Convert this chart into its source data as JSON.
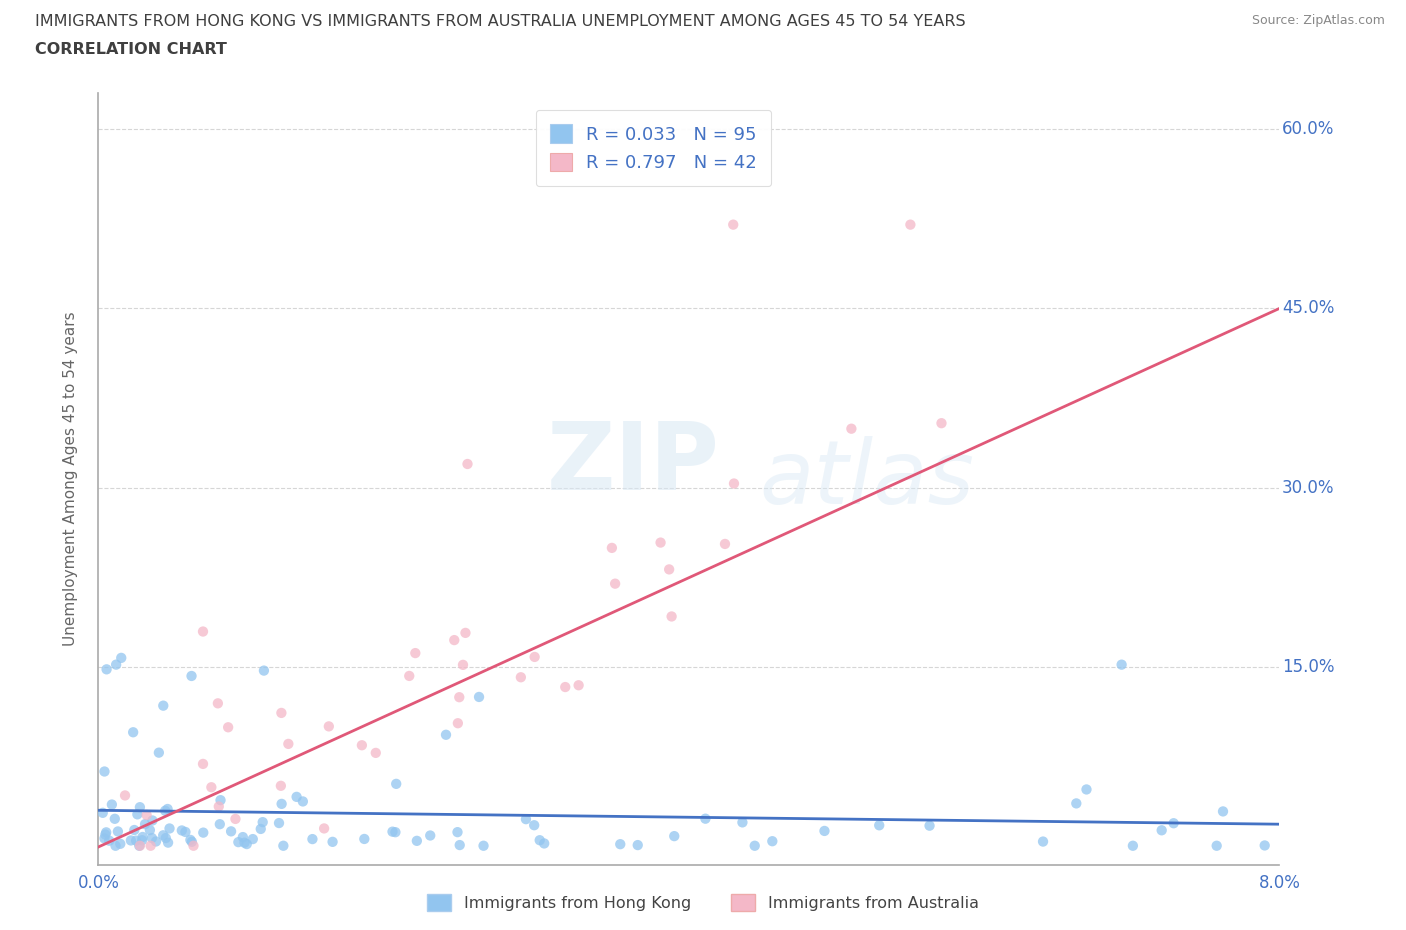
{
  "title_line1": "IMMIGRANTS FROM HONG KONG VS IMMIGRANTS FROM AUSTRALIA UNEMPLOYMENT AMONG AGES 45 TO 54 YEARS",
  "title_line2": "CORRELATION CHART",
  "source": "Source: ZipAtlas.com",
  "ylabel": "Unemployment Among Ages 45 to 54 years",
  "yticks": [
    0.0,
    0.15,
    0.3,
    0.45,
    0.6
  ],
  "xmin": 0.0,
  "xmax": 0.08,
  "ymin": -0.015,
  "ymax": 0.63,
  "hk_R": 0.033,
  "hk_N": 95,
  "aus_R": 0.797,
  "aus_N": 42,
  "hk_color": "#92c5ef",
  "hk_line_color": "#4472c4",
  "aus_color": "#f4b8c8",
  "aus_line_color": "#e05878",
  "legend_label_hk": "Immigrants from Hong Kong",
  "legend_label_aus": "Immigrants from Australia",
  "watermark_zip": "ZIP",
  "watermark_atlas": "atlas",
  "title_color": "#3f3f3f",
  "label_color": "#4472c4",
  "grid_color": "#cccccc",
  "aus_trend_x0": 0.0,
  "aus_trend_y0": 0.0,
  "aus_trend_x1": 0.08,
  "aus_trend_y1": 0.45,
  "hk_trend_x0": 0.0,
  "hk_trend_y0": 0.03,
  "hk_trend_x1": 0.08,
  "hk_trend_y1": 0.033,
  "hk_seed": 77,
  "aus_seed": 42
}
